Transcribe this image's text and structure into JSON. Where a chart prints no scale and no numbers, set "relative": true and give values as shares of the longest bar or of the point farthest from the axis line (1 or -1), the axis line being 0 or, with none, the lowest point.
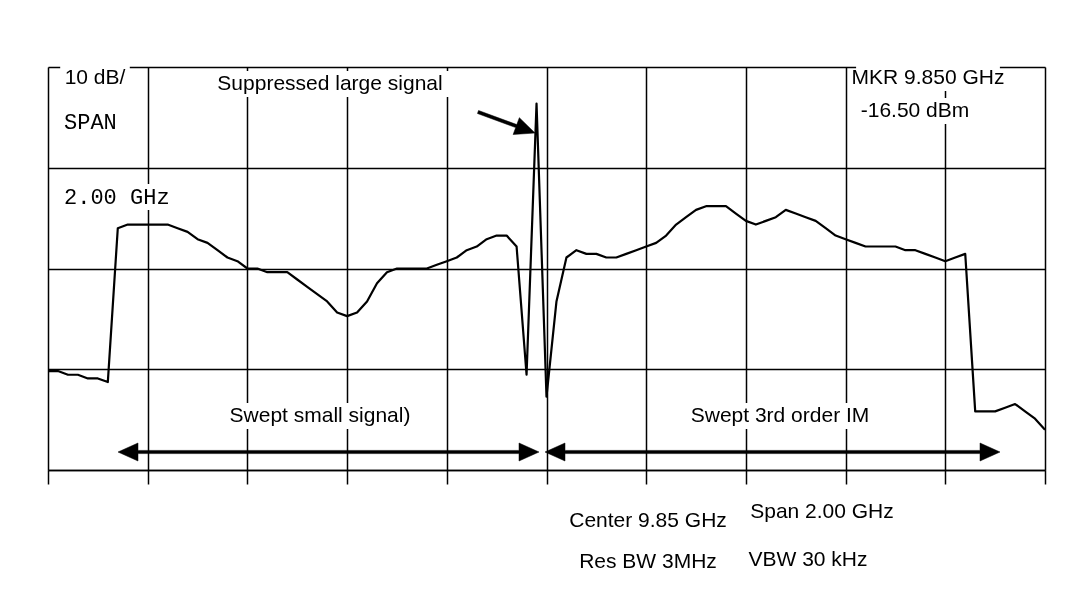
{
  "chart_data": {
    "type": "line",
    "relative": true,
    "grid": true,
    "tick_labels": false,
    "categories": [
      null,
      null,
      null,
      null,
      null,
      null,
      null,
      null,
      null,
      null,
      null,
      null,
      null,
      null,
      null,
      null,
      null,
      null,
      null,
      null,
      null,
      null,
      null,
      null,
      null,
      null,
      null,
      null,
      null,
      null,
      null,
      null,
      null,
      null,
      null,
      null,
      null,
      null,
      null,
      null,
      null,
      null,
      null,
      null,
      null,
      null,
      null,
      null,
      null,
      null,
      null,
      null,
      null,
      null,
      null,
      null,
      null,
      null,
      null,
      null,
      null,
      null,
      null,
      null,
      null,
      null,
      null,
      null,
      null,
      null,
      null,
      null,
      null,
      null,
      null,
      null,
      null,
      null,
      null,
      null,
      null,
      null,
      null,
      null,
      null,
      null,
      null,
      null,
      null,
      null,
      null,
      null,
      null,
      null,
      null,
      null,
      null,
      null,
      null,
      null,
      null
    ],
    "series": [
      {
        "color": "#000000",
        "values": [
          0.27,
          0.27,
          0.26,
          0.26,
          0.25,
          0.25,
          0.24,
          0.66,
          0.67,
          0.67,
          0.67,
          0.67,
          0.67,
          0.66,
          0.65,
          0.63,
          0.62,
          0.6,
          0.58,
          0.57,
          0.55,
          0.55,
          0.54,
          0.54,
          0.54,
          0.52,
          0.5,
          0.48,
          0.46,
          0.43,
          0.42,
          0.43,
          0.46,
          0.51,
          0.54,
          0.55,
          0.55,
          0.55,
          0.55,
          0.56,
          0.57,
          0.58,
          0.6,
          0.61,
          0.63,
          0.64,
          0.64,
          0.61,
          0.26,
          1,
          0.2,
          0.46,
          0.58,
          0.6,
          0.59,
          0.59,
          0.58,
          0.58,
          0.59,
          0.6,
          0.61,
          0.62,
          0.64,
          0.67,
          0.69,
          0.71,
          0.72,
          0.72,
          0.72,
          0.7,
          0.68,
          0.67,
          0.68,
          0.69,
          0.71,
          0.7,
          0.69,
          0.68,
          0.66,
          0.64,
          0.63,
          0.62,
          0.61,
          0.61,
          0.61,
          0.61,
          0.6,
          0.6,
          0.59,
          0.58,
          0.57,
          0.58,
          0.59,
          0.16,
          0.16,
          0.16,
          0.17,
          0.18,
          0.16,
          0.14,
          0.11
        ]
      }
    ],
    "annotations": [
      "10 dB/",
      "Suppressed large signal",
      "MKR 9.850 GHz",
      "-16.50 dBm",
      "SPAN",
      "2.00 GHz",
      "Swept small signal)",
      "Swept 3rd order IM",
      "Center 9.85 GHz",
      "Span 2.00 GHz",
      "Res BW 3MHz",
      "VBW 30 kHz"
    ]
  }
}
